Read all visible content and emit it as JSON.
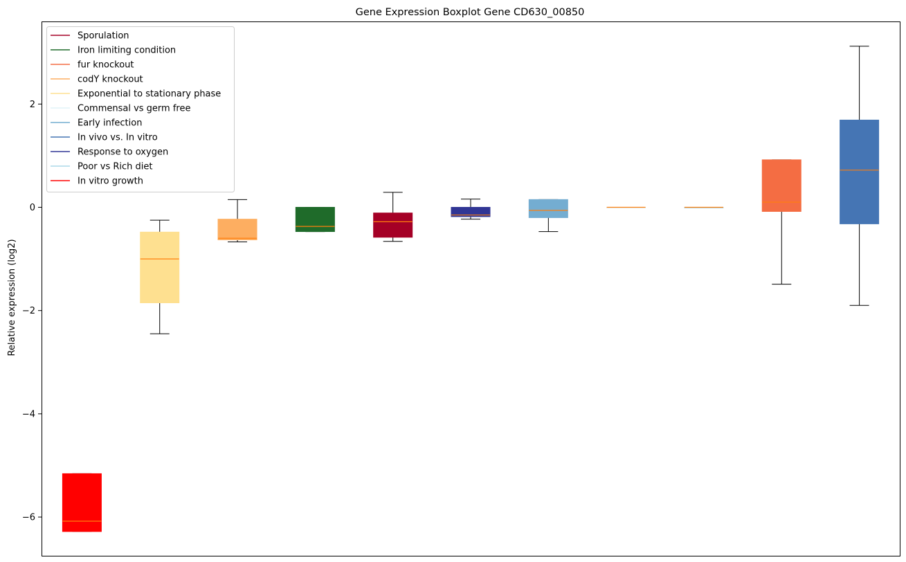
{
  "chart_data": {
    "type": "box",
    "title": "Gene Expression Boxplot Gene CD630_00850",
    "xlabel": "",
    "ylabel": "Relative expression (log2)",
    "ylim": [
      -6.75,
      3.6
    ],
    "yticks": [
      -6,
      -4,
      -2,
      0,
      2
    ],
    "ytick_labels": [
      "−6",
      "−4",
      "−2",
      "0",
      "2"
    ],
    "grid": false,
    "legend_position": "top-left",
    "median_color": "#ff7f0e",
    "legend": [
      {
        "label": "Sporulation",
        "color": "#a50026"
      },
      {
        "label": "Iron limiting condition",
        "color": "#1f6b2a"
      },
      {
        "label": "fur knockout",
        "color": "#f46d43"
      },
      {
        "label": "codY knockout",
        "color": "#fdae61"
      },
      {
        "label": "Exponential to stationary phase",
        "color": "#fee090"
      },
      {
        "label": "Commensal vs germ free",
        "color": "#e0f3f8"
      },
      {
        "label": "Early infection",
        "color": "#74add1"
      },
      {
        "label": "In vivo vs. In vitro",
        "color": "#4575b4"
      },
      {
        "label": "Response to oxygen",
        "color": "#313695"
      },
      {
        "label": "Poor vs Rich diet",
        "color": "#abd9e9"
      },
      {
        "label": "In vitro growth",
        "color": "#ff0000"
      }
    ],
    "boxes": [
      {
        "group": "In vitro growth",
        "color": "#ff0000",
        "whislo": -6.28,
        "q1": -6.28,
        "median": -6.08,
        "q3": -5.16,
        "whishi": -5.16
      },
      {
        "group": "Exponential to stationary phase",
        "color": "#fee090",
        "whislo": -2.45,
        "q1": -1.85,
        "median": -1.0,
        "q3": -0.48,
        "whishi": -0.25
      },
      {
        "group": "codY knockout",
        "color": "#fdae61",
        "whislo": -0.67,
        "q1": -0.63,
        "median": -0.6,
        "q3": -0.23,
        "whishi": 0.15
      },
      {
        "group": "Iron limiting condition",
        "color": "#1f6b2a",
        "whislo": -0.47,
        "q1": -0.47,
        "median": -0.37,
        "q3": 0.0,
        "whishi": 0.0
      },
      {
        "group": "Sporulation",
        "color": "#a50026",
        "whislo": -0.66,
        "q1": -0.58,
        "median": -0.28,
        "q3": -0.11,
        "whishi": 0.29
      },
      {
        "group": "Response to oxygen",
        "color": "#313695",
        "whislo": -0.23,
        "q1": -0.18,
        "median": -0.15,
        "q3": 0.0,
        "whishi": 0.16
      },
      {
        "group": "Early infection",
        "color": "#74add1",
        "whislo": -0.47,
        "q1": -0.2,
        "median": -0.06,
        "q3": 0.15,
        "whishi": 0.15
      },
      {
        "group": "Commensal vs germ free",
        "color": "#e0f3f8",
        "whislo": 0.0,
        "q1": 0.0,
        "median": 0.0,
        "q3": 0.0,
        "whishi": 0.0
      },
      {
        "group": "Poor vs Rich diet",
        "color": "#abd9e9",
        "whislo": 0.0,
        "q1": 0.0,
        "median": 0.0,
        "q3": 0.0,
        "whishi": 0.0
      },
      {
        "group": "fur knockout",
        "color": "#f46d43",
        "whislo": -1.49,
        "q1": -0.08,
        "median": 0.1,
        "q3": 0.92,
        "whishi": 0.92
      },
      {
        "group": "In vivo vs. In vitro",
        "color": "#4575b4",
        "whislo": -1.9,
        "q1": -0.32,
        "median": 0.72,
        "q3": 1.69,
        "whishi": 3.12
      }
    ]
  }
}
